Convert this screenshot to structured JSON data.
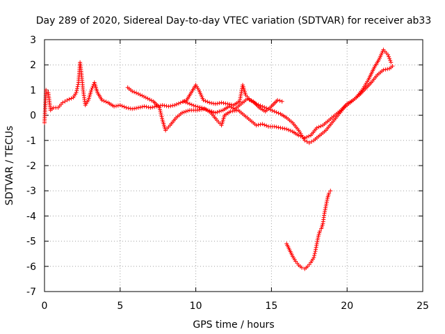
{
  "chart_data": {
    "type": "scatter",
    "title": "Day 289 of 2020, Sidereal Day-to-day VTEC variation (SDTVAR) for receiver ab33",
    "xlabel": "GPS time / hours",
    "ylabel": "SDTVAR / TECUs",
    "xlim": [
      0,
      25
    ],
    "ylim": [
      -7,
      3
    ],
    "xticks": [
      0,
      5,
      10,
      15,
      20,
      25
    ],
    "yticks": [
      -7,
      -6,
      -5,
      -4,
      -3,
      -2,
      -1,
      0,
      1,
      2,
      3
    ],
    "grid": true,
    "marker": "+",
    "color": "#ff0000",
    "series": [
      {
        "name": "main-trace",
        "points": [
          [
            0.0,
            -0.3
          ],
          [
            0.1,
            1.0
          ],
          [
            0.25,
            0.9
          ],
          [
            0.4,
            0.2
          ],
          [
            0.6,
            0.3
          ],
          [
            0.9,
            0.3
          ],
          [
            1.2,
            0.5
          ],
          [
            1.5,
            0.6
          ],
          [
            1.9,
            0.7
          ],
          [
            2.1,
            0.9
          ],
          [
            2.25,
            1.3
          ],
          [
            2.35,
            2.1
          ],
          [
            2.45,
            1.6
          ],
          [
            2.55,
            1.0
          ],
          [
            2.7,
            0.4
          ],
          [
            2.9,
            0.6
          ],
          [
            3.1,
            1.0
          ],
          [
            3.3,
            1.3
          ],
          [
            3.5,
            0.9
          ],
          [
            3.8,
            0.6
          ],
          [
            4.2,
            0.5
          ],
          [
            4.6,
            0.35
          ],
          [
            5.0,
            0.4
          ],
          [
            5.4,
            0.3
          ],
          [
            5.8,
            0.25
          ],
          [
            6.2,
            0.3
          ],
          [
            6.6,
            0.35
          ],
          [
            7.0,
            0.3
          ],
          [
            7.4,
            0.35
          ],
          [
            7.8,
            0.4
          ],
          [
            8.2,
            0.35
          ],
          [
            8.6,
            0.4
          ],
          [
            9.0,
            0.5
          ],
          [
            9.4,
            0.6
          ],
          [
            9.7,
            0.9
          ],
          [
            10.0,
            1.2
          ],
          [
            10.2,
            1.0
          ],
          [
            10.5,
            0.6
          ],
          [
            10.9,
            0.5
          ],
          [
            11.3,
            0.45
          ],
          [
            11.7,
            0.5
          ],
          [
            12.1,
            0.45
          ],
          [
            12.5,
            0.4
          ],
          [
            12.9,
            0.55
          ],
          [
            13.1,
            1.2
          ],
          [
            13.3,
            0.8
          ],
          [
            13.6,
            0.6
          ],
          [
            14.0,
            0.45
          ],
          [
            14.4,
            0.35
          ],
          [
            14.8,
            0.25
          ],
          [
            15.2,
            0.15
          ],
          [
            15.6,
            0.05
          ],
          [
            16.0,
            -0.1
          ],
          [
            16.4,
            -0.3
          ],
          [
            16.8,
            -0.6
          ],
          [
            17.2,
            -1.0
          ],
          [
            17.5,
            -1.1
          ],
          [
            17.8,
            -1.0
          ],
          [
            18.2,
            -0.8
          ],
          [
            18.6,
            -0.6
          ],
          [
            19.0,
            -0.3
          ],
          [
            19.4,
            0.0
          ],
          [
            19.8,
            0.3
          ],
          [
            20.2,
            0.5
          ],
          [
            20.6,
            0.7
          ],
          [
            21.0,
            1.0
          ],
          [
            21.4,
            1.4
          ],
          [
            21.8,
            1.9
          ],
          [
            22.1,
            2.2
          ],
          [
            22.4,
            2.6
          ],
          [
            22.7,
            2.4
          ],
          [
            22.9,
            2.1
          ]
        ]
      },
      {
        "name": "secondary-trace",
        "points": [
          [
            5.5,
            1.1
          ],
          [
            5.8,
            0.95
          ],
          [
            6.2,
            0.85
          ],
          [
            6.7,
            0.7
          ],
          [
            7.2,
            0.55
          ],
          [
            7.6,
            0.3
          ],
          [
            7.8,
            -0.2
          ],
          [
            8.0,
            -0.6
          ],
          [
            8.3,
            -0.4
          ],
          [
            8.7,
            -0.1
          ],
          [
            9.1,
            0.1
          ],
          [
            9.6,
            0.2
          ],
          [
            10.1,
            0.2
          ],
          [
            10.6,
            0.25
          ],
          [
            11.0,
            0.1
          ],
          [
            11.4,
            -0.2
          ],
          [
            11.7,
            -0.4
          ],
          [
            11.9,
            0.0
          ],
          [
            12.3,
            0.15
          ],
          [
            12.8,
            0.2
          ],
          [
            13.2,
            0.0
          ],
          [
            13.6,
            -0.2
          ],
          [
            14.0,
            -0.4
          ],
          [
            14.4,
            -0.35
          ],
          [
            14.8,
            -0.45
          ],
          [
            15.2,
            -0.45
          ],
          [
            15.6,
            -0.5
          ],
          [
            16.0,
            -0.55
          ],
          [
            16.4,
            -0.65
          ],
          [
            16.8,
            -0.8
          ],
          [
            17.2,
            -0.9
          ],
          [
            17.6,
            -0.8
          ],
          [
            18.0,
            -0.5
          ],
          [
            18.4,
            -0.4
          ],
          [
            18.8,
            -0.2
          ],
          [
            19.2,
            0.0
          ],
          [
            19.6,
            0.2
          ],
          [
            20.0,
            0.45
          ],
          [
            20.4,
            0.6
          ],
          [
            20.8,
            0.8
          ],
          [
            21.2,
            1.05
          ],
          [
            21.6,
            1.3
          ],
          [
            22.0,
            1.6
          ],
          [
            22.4,
            1.8
          ],
          [
            22.8,
            1.85
          ],
          [
            23.0,
            1.95
          ]
        ]
      },
      {
        "name": "third-trace",
        "points": [
          [
            9.2,
            0.55
          ],
          [
            9.6,
            0.45
          ],
          [
            10.0,
            0.35
          ],
          [
            10.4,
            0.3
          ],
          [
            10.8,
            0.2
          ],
          [
            11.3,
            0.1
          ],
          [
            11.8,
            0.2
          ],
          [
            12.2,
            0.35
          ],
          [
            12.6,
            0.25
          ],
          [
            13.0,
            0.45
          ],
          [
            13.4,
            0.65
          ],
          [
            13.8,
            0.55
          ],
          [
            14.2,
            0.3
          ],
          [
            14.6,
            0.15
          ],
          [
            15.0,
            0.35
          ],
          [
            15.4,
            0.6
          ],
          [
            15.7,
            0.55
          ]
        ]
      },
      {
        "name": "negative-branch",
        "points": [
          [
            16.0,
            -5.1
          ],
          [
            16.2,
            -5.35
          ],
          [
            16.4,
            -5.6
          ],
          [
            16.6,
            -5.8
          ],
          [
            16.8,
            -5.95
          ],
          [
            17.0,
            -6.05
          ],
          [
            17.2,
            -6.1
          ],
          [
            17.4,
            -6.0
          ],
          [
            17.6,
            -5.85
          ],
          [
            17.8,
            -5.65
          ],
          [
            17.9,
            -5.4
          ],
          [
            18.0,
            -5.1
          ],
          [
            18.1,
            -4.8
          ],
          [
            18.2,
            -4.6
          ],
          [
            18.3,
            -4.5
          ],
          [
            18.4,
            -4.3
          ],
          [
            18.5,
            -3.9
          ],
          [
            18.6,
            -3.6
          ],
          [
            18.7,
            -3.3
          ],
          [
            18.8,
            -3.1
          ],
          [
            18.9,
            -3.0
          ]
        ]
      }
    ]
  }
}
